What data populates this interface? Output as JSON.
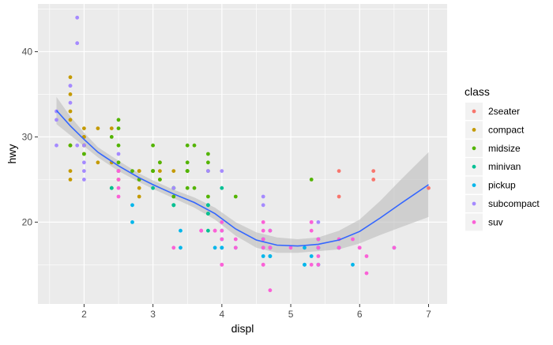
{
  "chart_data": {
    "type": "scatter",
    "title": "",
    "xlabel": "displ",
    "ylabel": "hwy",
    "xlim": [
      1.33,
      7.27
    ],
    "ylim": [
      10.4,
      45.6
    ],
    "xticks": [
      2,
      3,
      4,
      5,
      6,
      7
    ],
    "yticks": [
      20,
      30,
      40
    ],
    "grid": true,
    "legend": {
      "title": "class",
      "placement": "right"
    },
    "colors": {
      "panel": "#EBEBEB",
      "grid_major": "#FFFFFF",
      "smooth_line": "#3366FF",
      "ribbon": "#BDBDBD"
    },
    "series": [
      {
        "name": "2seater",
        "color": "#F8766D",
        "points": [
          [
            5.7,
            26
          ],
          [
            5.7,
            23
          ],
          [
            6.2,
            26
          ],
          [
            6.2,
            25
          ],
          [
            7.0,
            24
          ]
        ]
      },
      {
        "name": "compact",
        "color": "#C49A00",
        "points": [
          [
            1.8,
            29
          ],
          [
            1.8,
            29
          ],
          [
            2.0,
            31
          ],
          [
            2.0,
            30
          ],
          [
            2.8,
            26
          ],
          [
            2.8,
            26
          ],
          [
            3.1,
            27
          ],
          [
            1.8,
            26
          ],
          [
            1.8,
            25
          ],
          [
            2.0,
            28
          ],
          [
            2.0,
            29
          ],
          [
            2.8,
            25
          ],
          [
            2.8,
            25
          ],
          [
            3.1,
            25
          ],
          [
            3.1,
            26
          ],
          [
            2.2,
            27
          ],
          [
            2.2,
            31
          ],
          [
            2.4,
            31
          ],
          [
            2.4,
            27
          ],
          [
            3.0,
            26
          ],
          [
            3.0,
            26
          ],
          [
            3.3,
            26
          ],
          [
            1.8,
            37
          ],
          [
            1.8,
            35
          ],
          [
            2.0,
            29
          ],
          [
            2.0,
            29
          ],
          [
            2.5,
            25
          ],
          [
            2.5,
            26
          ],
          [
            2.8,
            23
          ],
          [
            2.8,
            24
          ],
          [
            1.8,
            33
          ],
          [
            1.8,
            32
          ],
          [
            2.0,
            30
          ]
        ]
      },
      {
        "name": "midsize",
        "color": "#53B400",
        "points": [
          [
            2.4,
            30
          ],
          [
            2.4,
            24
          ],
          [
            2.5,
            26
          ],
          [
            2.5,
            31
          ],
          [
            3.0,
            29
          ],
          [
            3.5,
            26
          ],
          [
            3.0,
            26
          ],
          [
            3.5,
            26
          ],
          [
            3.6,
            29
          ],
          [
            2.5,
            32
          ],
          [
            3.5,
            26
          ],
          [
            3.5,
            26
          ],
          [
            3.8,
            27
          ],
          [
            3.8,
            28
          ],
          [
            3.8,
            26
          ],
          [
            5.3,
            25
          ],
          [
            1.8,
            29
          ],
          [
            2.0,
            28
          ],
          [
            2.8,
            25
          ],
          [
            2.7,
            26
          ],
          [
            3.1,
            27
          ],
          [
            3.1,
            25
          ],
          [
            2.5,
            29
          ],
          [
            2.5,
            27
          ],
          [
            3.0,
            26
          ],
          [
            3.3,
            24
          ],
          [
            3.3,
            24
          ],
          [
            3.0,
            26
          ],
          [
            3.5,
            29
          ],
          [
            3.5,
            27
          ],
          [
            4.2,
            23
          ],
          [
            3.8,
            23
          ],
          [
            3.6,
            24
          ],
          [
            3.3,
            22
          ],
          [
            3.3,
            23
          ],
          [
            3.5,
            24
          ],
          [
            3.8,
            21
          ]
        ]
      },
      {
        "name": "minivan",
        "color": "#00C094",
        "points": [
          [
            2.4,
            24
          ],
          [
            3.0,
            24
          ],
          [
            3.3,
            22
          ],
          [
            3.3,
            22
          ],
          [
            3.3,
            24
          ],
          [
            3.8,
            22
          ],
          [
            3.8,
            22
          ],
          [
            3.8,
            21
          ],
          [
            4.0,
            24
          ],
          [
            3.8,
            19
          ],
          [
            5.7,
            17
          ]
        ]
      },
      {
        "name": "pickup",
        "color": "#00B6EB",
        "points": [
          [
            2.7,
            22
          ],
          [
            2.7,
            20
          ],
          [
            3.4,
            17
          ],
          [
            3.4,
            19
          ],
          [
            4.0,
            17
          ],
          [
            4.7,
            19
          ],
          [
            4.7,
            16
          ],
          [
            4.7,
            17
          ],
          [
            5.2,
            17
          ],
          [
            5.2,
            15
          ],
          [
            5.7,
            17
          ],
          [
            5.9,
            15
          ],
          [
            4.0,
            17
          ],
          [
            4.2,
            17
          ],
          [
            4.6,
            17
          ],
          [
            4.6,
            16
          ],
          [
            5.4,
            17
          ],
          [
            5.4,
            15
          ],
          [
            5.4,
            17
          ],
          [
            3.9,
            17
          ],
          [
            4.7,
            17
          ],
          [
            4.7,
            16
          ],
          [
            4.7,
            17
          ],
          [
            5.2,
            15
          ],
          [
            5.3,
            16
          ],
          [
            6.5,
            17
          ],
          [
            4.0,
            18
          ],
          [
            4.0,
            19
          ],
          [
            4.6,
            18
          ],
          [
            5.4,
            15
          ],
          [
            5.4,
            18
          ]
        ]
      },
      {
        "name": "subcompact",
        "color": "#A58AFF",
        "points": [
          [
            1.6,
            33
          ],
          [
            1.6,
            32
          ],
          [
            1.6,
            29
          ],
          [
            1.8,
            34
          ],
          [
            1.8,
            36
          ],
          [
            1.8,
            36
          ],
          [
            1.9,
            44
          ],
          [
            1.9,
            41
          ],
          [
            1.9,
            29
          ],
          [
            2.0,
            26
          ],
          [
            2.0,
            29
          ],
          [
            2.0,
            27
          ],
          [
            2.5,
            26
          ],
          [
            2.5,
            28
          ],
          [
            3.3,
            24
          ],
          [
            3.8,
            26
          ],
          [
            4.0,
            26
          ],
          [
            4.6,
            22
          ],
          [
            4.6,
            23
          ],
          [
            5.4,
            20
          ],
          [
            2.0,
            25
          ]
        ]
      },
      {
        "name": "suv",
        "color": "#FB61D7",
        "points": [
          [
            5.3,
            20
          ],
          [
            5.3,
            15
          ],
          [
            5.3,
            20
          ],
          [
            5.7,
            17
          ],
          [
            6.0,
            17
          ],
          [
            5.7,
            17
          ],
          [
            6.5,
            17
          ],
          [
            6.1,
            14
          ],
          [
            4.7,
            17
          ],
          [
            4.7,
            12
          ],
          [
            4.7,
            19
          ],
          [
            4.7,
            17
          ],
          [
            5.7,
            18
          ],
          [
            6.0,
            17
          ],
          [
            4.0,
            15
          ],
          [
            4.6,
            17
          ],
          [
            4.6,
            15
          ],
          [
            5.4,
            17
          ],
          [
            2.5,
            23
          ],
          [
            2.5,
            24
          ],
          [
            3.3,
            17
          ],
          [
            4.0,
            20
          ],
          [
            4.6,
            19
          ],
          [
            4.2,
            18
          ],
          [
            3.7,
            19
          ],
          [
            3.9,
            19
          ],
          [
            4.0,
            18
          ],
          [
            4.7,
            17
          ],
          [
            5.0,
            17
          ],
          [
            5.3,
            19
          ],
          [
            5.4,
            18
          ],
          [
            5.9,
            18
          ],
          [
            6.1,
            16
          ],
          [
            4.6,
            20
          ],
          [
            4.0,
            19
          ],
          [
            4.6,
            18
          ],
          [
            5.4,
            15
          ],
          [
            5.4,
            16
          ],
          [
            4.0,
            15
          ],
          [
            2.5,
            26
          ],
          [
            2.5,
            25
          ],
          [
            4.2,
            17
          ],
          [
            4.6,
            15
          ],
          [
            3.7,
            19
          ],
          [
            3.9,
            19
          ]
        ]
      }
    ],
    "smooth": {
      "x": [
        1.6,
        1.8,
        2.0,
        2.2,
        2.5,
        2.8,
        3.0,
        3.3,
        3.6,
        3.9,
        4.2,
        4.5,
        4.8,
        5.1,
        5.4,
        5.7,
        6.0,
        6.3,
        6.6,
        7.0
      ],
      "y": [
        33.1,
        31.3,
        29.7,
        28.2,
        26.6,
        25.2,
        24.4,
        23.3,
        22.3,
        21.0,
        19.2,
        17.9,
        17.3,
        17.2,
        17.4,
        17.9,
        18.9,
        20.5,
        22.2,
        24.4
      ],
      "ymin": [
        31.5,
        30.2,
        28.9,
        27.6,
        26.0,
        24.7,
        23.9,
        22.8,
        21.7,
        20.3,
        18.4,
        17.0,
        16.4,
        16.4,
        16.6,
        16.8,
        17.5,
        18.5,
        19.4,
        20.6
      ],
      "ymax": [
        34.7,
        32.4,
        30.5,
        28.8,
        27.2,
        25.7,
        24.9,
        23.8,
        22.9,
        21.7,
        20.0,
        18.8,
        18.2,
        18.0,
        18.2,
        19.0,
        20.3,
        22.5,
        25.0,
        28.2
      ]
    }
  }
}
